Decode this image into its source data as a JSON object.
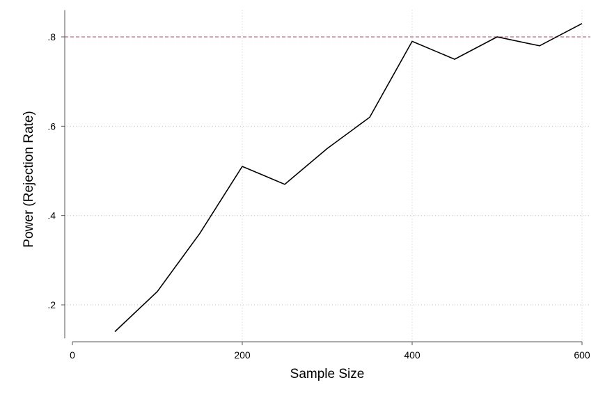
{
  "chart_data": {
    "type": "line",
    "title": "",
    "xlabel": "Sample Size",
    "ylabel": "Power (Rejection Rate)",
    "xlim": [
      0,
      600
    ],
    "ylim": [
      0.125,
      0.86
    ],
    "x_ticks": [
      0,
      200,
      400,
      600
    ],
    "x_tick_labels": [
      "0",
      "200",
      "400",
      "600"
    ],
    "y_ticks": [
      0.2,
      0.4,
      0.6,
      0.8
    ],
    "y_tick_labels": [
      ".2",
      ".4",
      ".6",
      ".8"
    ],
    "grid": true,
    "reference_line": {
      "axis": "y",
      "value": 0.8,
      "color": "#c0395b",
      "style": "dashed"
    },
    "series": [
      {
        "color": "#000000",
        "x": [
          50,
          100,
          150,
          200,
          250,
          300,
          350,
          400,
          450,
          500,
          550,
          600
        ],
        "y": [
          0.14,
          0.23,
          0.36,
          0.51,
          0.47,
          0.55,
          0.62,
          0.79,
          0.75,
          0.8,
          0.78,
          0.83
        ]
      }
    ]
  }
}
